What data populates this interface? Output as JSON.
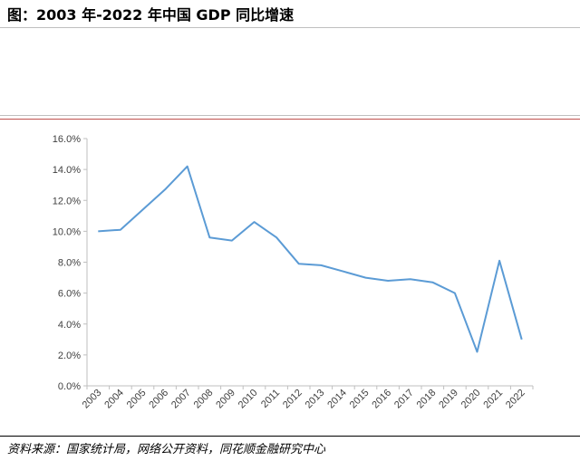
{
  "header": {
    "title": "图：2003 年-2022 年中国 GDP 同比增速"
  },
  "footer": {
    "source": "资料来源：国家统计局，网络公开资料，同花顺金融研究中心"
  },
  "chart_data": {
    "type": "line",
    "title": "",
    "xlabel": "",
    "ylabel": "",
    "categories": [
      "2003",
      "2004",
      "2005",
      "2006",
      "2007",
      "2008",
      "2009",
      "2010",
      "2011",
      "2012",
      "2013",
      "2014",
      "2015",
      "2016",
      "2017",
      "2018",
      "2019",
      "2020",
      "2021",
      "2022"
    ],
    "series": [
      {
        "values": [
          10.0,
          10.1,
          11.4,
          12.7,
          14.2,
          9.6,
          9.4,
          10.6,
          9.6,
          7.9,
          7.8,
          7.4,
          7.0,
          6.8,
          6.9,
          6.7,
          6.0,
          2.2,
          8.1,
          3.0
        ]
      }
    ],
    "ylim": [
      0,
      16
    ],
    "yticks": [
      0,
      2,
      4,
      6,
      8,
      10,
      12,
      14,
      16
    ],
    "ytick_labels": [
      "0.0%",
      "2.0%",
      "4.0%",
      "6.0%",
      "8.0%",
      "10.0%",
      "12.0%",
      "14.0%",
      "16.0%"
    ],
    "grid": false,
    "legend": "none",
    "colors": {
      "line": "#5b9bd5",
      "axis": "#bfbfbf",
      "rule_red": "#c0504d"
    }
  }
}
